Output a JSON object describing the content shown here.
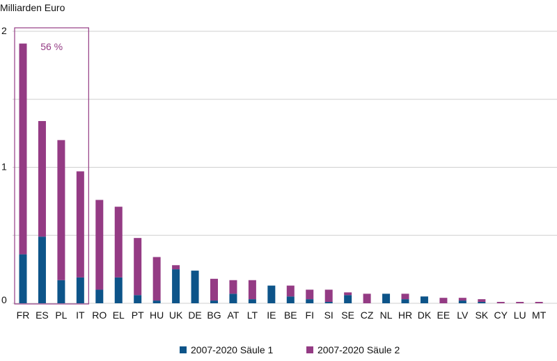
{
  "chart_data": {
    "type": "bar",
    "stacked": true,
    "y_unit_label": "Milliarden Euro",
    "ylim": [
      0,
      2
    ],
    "y_ticks": [
      0,
      1,
      2
    ],
    "grid": "horizontal",
    "categories": [
      "FR",
      "ES",
      "PL",
      "IT",
      "RO",
      "EL",
      "PT",
      "HU",
      "UK",
      "DE",
      "BG",
      "AT",
      "LT",
      "IE",
      "BE",
      "FI",
      "SI",
      "SE",
      "CZ",
      "NL",
      "HR",
      "DK",
      "EE",
      "LV",
      "SK",
      "CY",
      "LU",
      "MT"
    ],
    "series": [
      {
        "name": "2007-2020 Säule 1",
        "color": "#0d5489",
        "values": [
          0.36,
          0.49,
          0.17,
          0.19,
          0.1,
          0.19,
          0.06,
          0.02,
          0.25,
          0.24,
          0.02,
          0.07,
          0.03,
          0.13,
          0.05,
          0.03,
          0.01,
          0.06,
          0.0,
          0.07,
          0.03,
          0.05,
          0.0,
          0.02,
          0.01,
          0.0,
          0.0,
          0.0
        ]
      },
      {
        "name": "2007-2020 Säule 2",
        "color": "#943b84",
        "values": [
          1.55,
          0.85,
          1.03,
          0.78,
          0.66,
          0.52,
          0.42,
          0.32,
          0.03,
          0.0,
          0.16,
          0.1,
          0.14,
          0.0,
          0.08,
          0.07,
          0.09,
          0.02,
          0.07,
          0.0,
          0.04,
          0.0,
          0.04,
          0.02,
          0.02,
          0.01,
          0.01,
          0.01
        ]
      }
    ],
    "legend_position": "bottom",
    "annotation": {
      "text": "56 %",
      "spans_categories": [
        "FR",
        "ES",
        "PL",
        "IT"
      ],
      "color": "#943b84"
    }
  }
}
